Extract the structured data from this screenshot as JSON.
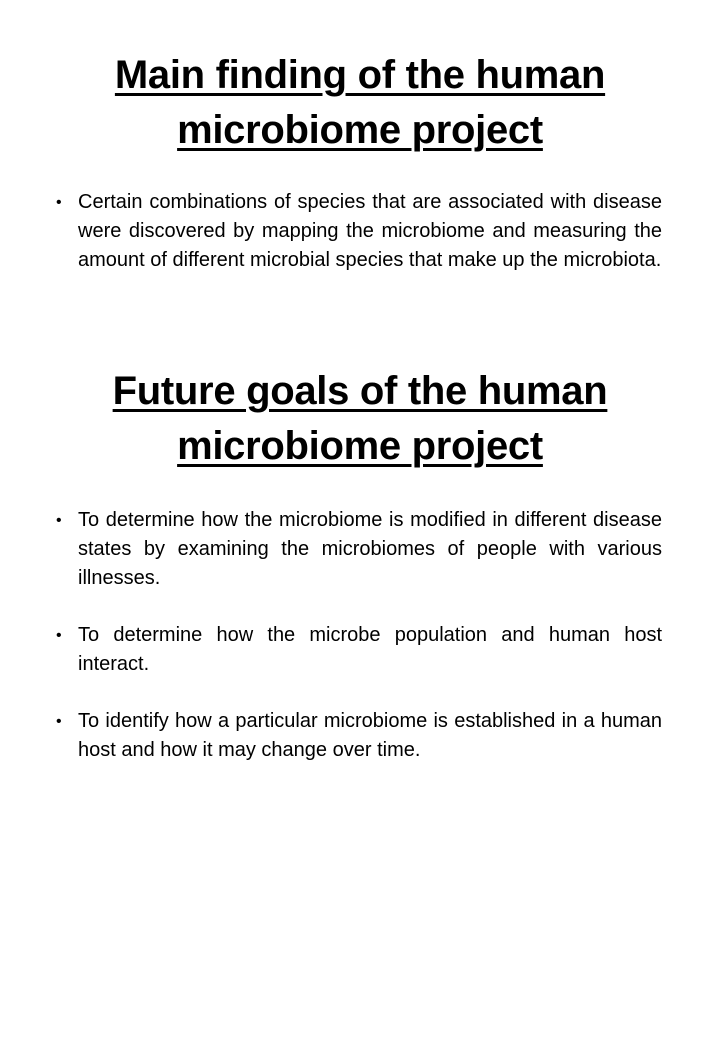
{
  "sections": [
    {
      "heading": "Main finding of the human microbiome project",
      "bullets": [
        "Certain combinations of species that are associated with disease were discovered by mapping the microbiome and measuring the amount of different microbial species that make up the microbiota."
      ]
    },
    {
      "heading": "Future goals of the human microbiome project",
      "bullets": [
        "To determine how the microbiome is modified in different disease states by examining the microbiomes of people with various illnesses.",
        "To determine how the microbe population and human host interact.",
        "To identify how a particular microbiome is established in a human host and how it may change over time."
      ]
    }
  ],
  "bullet_glyph": "•"
}
